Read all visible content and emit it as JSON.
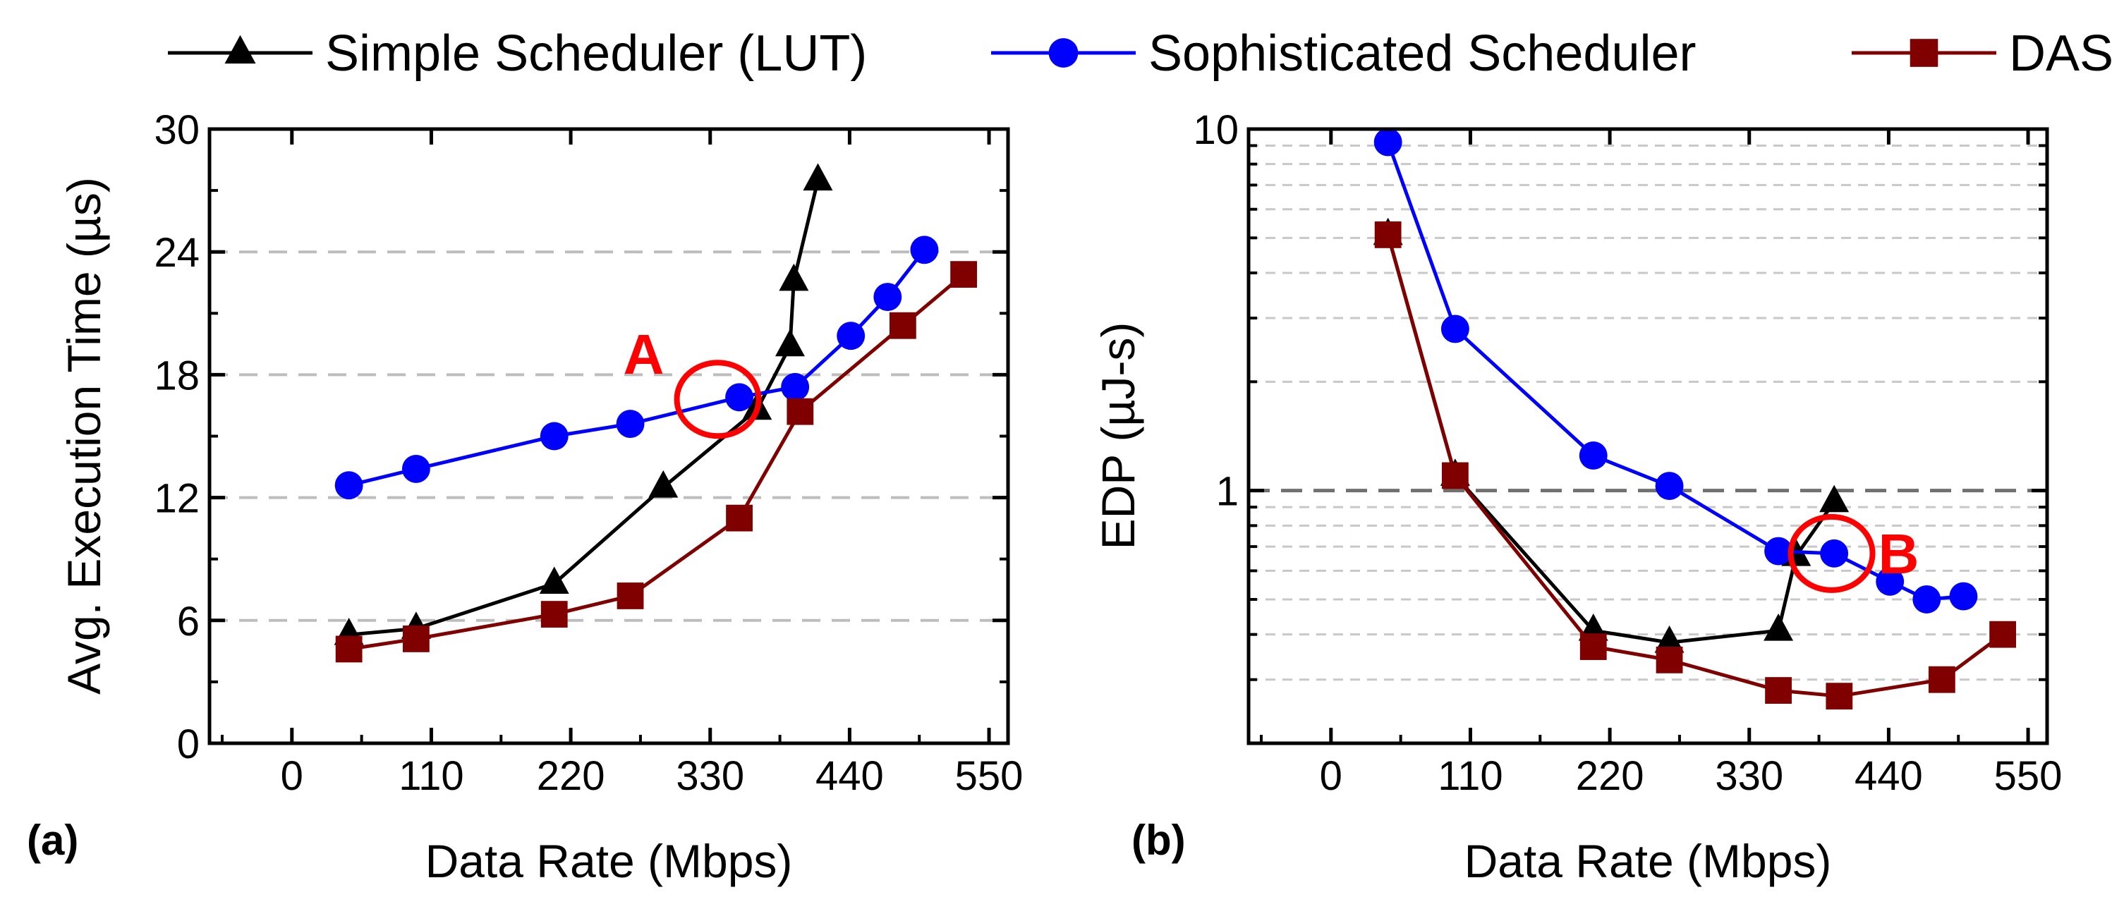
{
  "legend": [
    {
      "label": "Simple Scheduler (LUT)",
      "color": "#000000",
      "marker": "triangle"
    },
    {
      "label": "Sophisticated Scheduler",
      "color": "#0000ff",
      "marker": "circle"
    },
    {
      "label": "DAS",
      "color": "#800000",
      "marker": "square"
    }
  ],
  "chart_data": [
    {
      "type": "line",
      "panel_label": "(a)",
      "xlabel": "Data Rate (Mbps)",
      "ylabel": "Avg. Execution Time (µs)",
      "xlim": [
        -65,
        565
      ],
      "ylim": [
        0,
        30
      ],
      "xticks": [
        0,
        110,
        220,
        330,
        440,
        550
      ],
      "yticks": [
        0,
        6,
        12,
        18,
        24,
        30
      ],
      "ygrid_dashed": [
        6,
        12,
        18,
        24
      ],
      "series": [
        {
          "name": "Simple Scheduler (LUT)",
          "x": [
            45,
            98,
            207,
            293,
            367,
            393,
            396,
            415
          ],
          "y": [
            5.3,
            5.6,
            7.8,
            12.5,
            16.3,
            19.4,
            22.6,
            27.5
          ]
        },
        {
          "name": "Sophisticated Scheduler",
          "x": [
            45,
            98,
            207,
            267,
            353,
            397,
            441,
            470,
            499
          ],
          "y": [
            12.6,
            13.4,
            15.0,
            15.6,
            16.9,
            17.4,
            19.9,
            21.8,
            24.1
          ]
        },
        {
          "name": "DAS",
          "x": [
            45,
            98,
            207,
            267,
            353,
            401,
            482,
            530
          ],
          "y": [
            4.6,
            5.1,
            6.3,
            7.2,
            11.0,
            16.2,
            20.4,
            22.9
          ]
        }
      ],
      "annotations": [
        {
          "text": "A",
          "x": 336,
          "y": 16.8
        }
      ]
    },
    {
      "type": "line",
      "panel_label": "(b)",
      "xlabel": "Data Rate (Mbps)",
      "ylabel": "EDP (µJ-s)",
      "yscale": "log",
      "xlim": [
        -65,
        565
      ],
      "ylim": [
        0.2,
        10
      ],
      "xticks": [
        0,
        110,
        220,
        330,
        440,
        550
      ],
      "yticks": [
        1,
        10
      ],
      "ygrid_dashed": [
        0.3,
        0.4,
        0.5,
        0.6,
        0.7,
        0.8,
        0.9,
        1,
        2,
        3,
        4,
        5,
        6,
        7,
        8,
        9
      ],
      "series": [
        {
          "name": "Simple Scheduler (LUT)",
          "x": [
            45,
            98,
            207,
            267,
            353,
            367,
            397
          ],
          "y": [
            5.1,
            1.1,
            0.41,
            0.38,
            0.41,
            0.66,
            0.93
          ]
        },
        {
          "name": "Sophisticated Scheduler",
          "x": [
            45,
            98,
            207,
            267,
            353,
            397,
            441,
            470,
            499
          ],
          "y": [
            9.2,
            2.8,
            1.25,
            1.03,
            0.68,
            0.67,
            0.56,
            0.5,
            0.51
          ]
        },
        {
          "name": "DAS",
          "x": [
            45,
            98,
            207,
            267,
            353,
            401,
            482,
            530
          ],
          "y": [
            5.1,
            1.1,
            0.37,
            0.34,
            0.28,
            0.27,
            0.3,
            0.4
          ]
        }
      ],
      "annotations": [
        {
          "text": "B",
          "x": 395,
          "y": 0.67
        }
      ]
    }
  ]
}
